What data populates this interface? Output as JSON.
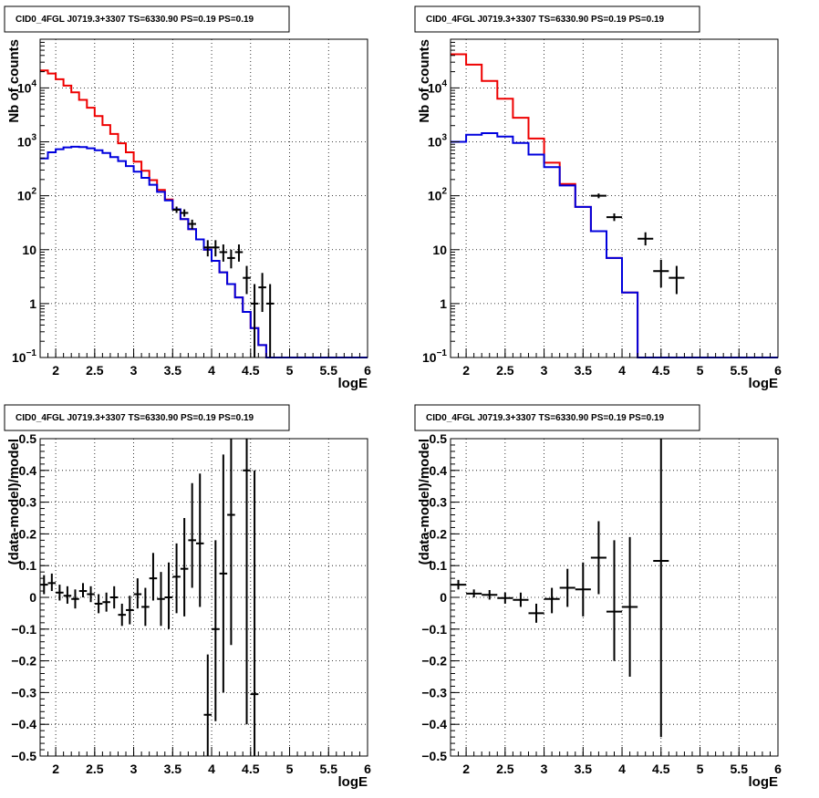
{
  "panel_title": "CID0_4FGL J0719.3+3307 TS=6330.90 PS=0.19 PS=0.19",
  "colors": {
    "model_total": "#ee0000",
    "model_source": "#0000dd",
    "data": "#000000",
    "grid": "#000000"
  },
  "chart_data": [
    {
      "id": "counts-fine",
      "type": "line",
      "title": "CID0_4FGL J0719.3+3307 TS=6330.90 PS=0.19 PS=0.19",
      "xlabel": "logE",
      "ylabel": "Nb of counts",
      "xlim": [
        1.8,
        6.0
      ],
      "ylim": [
        0.1,
        80000
      ],
      "yscale": "log",
      "grid": true,
      "xticks": [
        "2",
        "2.5",
        "3",
        "3.5",
        "4",
        "4.5",
        "5",
        "5.5",
        "6"
      ],
      "yticks": [
        {
          "v": 0.1,
          "base": "10",
          "exp": "−1"
        },
        {
          "v": 1,
          "text": "1"
        },
        {
          "v": 10,
          "text": "10"
        },
        {
          "v": 100,
          "base": "10",
          "exp": "2"
        },
        {
          "v": 1000,
          "base": "10",
          "exp": "3"
        },
        {
          "v": 10000,
          "base": "10",
          "exp": "4"
        }
      ],
      "bin_width": 0.1,
      "series": [
        {
          "name": "",
          "kind": "hist",
          "color": "#ee0000",
          "x0": 1.8,
          "values": [
            21000,
            18500,
            14500,
            11000,
            8300,
            6000,
            4300,
            3000,
            2050,
            1400,
            940,
            640,
            430,
            290,
            195,
            128,
            85,
            56,
            37,
            24,
            15.5,
            10,
            6.2,
            3.8,
            2.3,
            1.3,
            0.7,
            0.35,
            0.17,
            0.1,
            0.1,
            0.1,
            0.1,
            0.1,
            0.1,
            0.1,
            0.1,
            0.1,
            0.1,
            0.1,
            0.1,
            0.1
          ]
        },
        {
          "name": "",
          "kind": "hist",
          "color": "#0000dd",
          "x0": 1.8,
          "values": [
            490,
            640,
            730,
            790,
            810,
            800,
            760,
            700,
            620,
            520,
            440,
            355,
            280,
            215,
            160,
            118,
            82,
            56,
            37,
            24,
            15.5,
            10,
            6.2,
            3.8,
            2.3,
            1.3,
            0.7,
            0.35,
            0.17,
            0.1,
            0.1,
            0.1,
            0.1,
            0.1,
            0.1,
            0.1,
            0.1,
            0.1,
            0.1,
            0.1,
            0.1,
            0.1
          ]
        },
        {
          "name": "",
          "kind": "points",
          "color": "#000000",
          "points": [
            {
              "x": 3.55,
              "y": 55,
              "lo": 48,
              "hi": 63
            },
            {
              "x": 3.65,
              "y": 48,
              "lo": 41,
              "hi": 56
            },
            {
              "x": 3.75,
              "y": 30,
              "lo": 24,
              "hi": 36
            },
            {
              "x": 3.95,
              "y": 11,
              "lo": 7.5,
              "hi": 15
            },
            {
              "x": 4.05,
              "y": 11,
              "lo": 7.5,
              "hi": 15
            },
            {
              "x": 4.15,
              "y": 9,
              "lo": 6,
              "hi": 12.5
            },
            {
              "x": 4.25,
              "y": 7,
              "lo": 4.5,
              "hi": 10
            },
            {
              "x": 4.35,
              "y": 9,
              "lo": 6,
              "hi": 12.5
            },
            {
              "x": 4.45,
              "y": 3,
              "lo": 1.5,
              "hi": 5
            },
            {
              "x": 4.55,
              "y": 1,
              "lo": 0.1,
              "hi": 2.3
            },
            {
              "x": 4.65,
              "y": 2,
              "lo": 0.7,
              "hi": 3.7
            },
            {
              "x": 4.75,
              "y": 1,
              "lo": 0.1,
              "hi": 2.3
            }
          ]
        }
      ]
    },
    {
      "id": "counts-coarse",
      "type": "line",
      "title": "CID0_4FGL J0719.3+3307 TS=6330.90 PS=0.19 PS=0.19",
      "xlabel": "logE",
      "ylabel": "Nb of counts",
      "xlim": [
        1.8,
        6.0
      ],
      "ylim": [
        0.1,
        80000
      ],
      "yscale": "log",
      "grid": true,
      "xticks": [
        "2",
        "2.5",
        "3",
        "3.5",
        "4",
        "4.5",
        "5",
        "5.5",
        "6"
      ],
      "yticks": [
        {
          "v": 0.1,
          "base": "10",
          "exp": "−1"
        },
        {
          "v": 1,
          "text": "1"
        },
        {
          "v": 10,
          "text": "10"
        },
        {
          "v": 100,
          "base": "10",
          "exp": "2"
        },
        {
          "v": 1000,
          "base": "10",
          "exp": "3"
        },
        {
          "v": 10000,
          "base": "10",
          "exp": "4"
        }
      ],
      "bin_width": 0.2,
      "series": [
        {
          "name": "",
          "kind": "hist",
          "color": "#ee0000",
          "x0": 1.8,
          "values": [
            42000,
            27000,
            13500,
            6300,
            2800,
            1150,
            410,
            165,
            62,
            22,
            7,
            1.6,
            0.1,
            0.1,
            0.1,
            0.1,
            0.1,
            0.1,
            0.1,
            0.1,
            0.1
          ]
        },
        {
          "name": "",
          "kind": "hist",
          "color": "#0000dd",
          "x0": 1.8,
          "values": [
            1000,
            1350,
            1450,
            1250,
            950,
            580,
            340,
            155,
            62,
            22,
            7,
            1.6,
            0.1,
            0.1,
            0.1,
            0.1,
            0.1,
            0.1,
            0.1,
            0.1,
            0.1
          ]
        },
        {
          "name": "",
          "kind": "points",
          "color": "#000000",
          "points": [
            {
              "x": 3.7,
              "y": 100,
              "lo": 90,
              "hi": 110
            },
            {
              "x": 3.9,
              "y": 40,
              "lo": 34,
              "hi": 47
            },
            {
              "x": 4.3,
              "y": 16,
              "lo": 12,
              "hi": 21
            },
            {
              "x": 4.5,
              "y": 4,
              "lo": 2,
              "hi": 6.5
            },
            {
              "x": 4.7,
              "y": 3,
              "lo": 1.5,
              "hi": 5
            }
          ]
        }
      ]
    },
    {
      "id": "residuals-fine",
      "type": "scatter",
      "title": "CID0_4FGL J0719.3+3307 TS=6330.90 PS=0.19 PS=0.19",
      "xlabel": "logE",
      "ylabel": "(data-model)/model",
      "xlim": [
        1.8,
        6.0
      ],
      "ylim": [
        -0.5,
        0.5
      ],
      "yscale": "linear",
      "grid": true,
      "xticks": [
        "2",
        "2.5",
        "3",
        "3.5",
        "4",
        "4.5",
        "5",
        "5.5",
        "6"
      ],
      "yticks": [
        {
          "v": -0.5,
          "text": "−0.5"
        },
        {
          "v": -0.4,
          "text": "−0.4"
        },
        {
          "v": -0.3,
          "text": "−0.3"
        },
        {
          "v": -0.2,
          "text": "−0.2"
        },
        {
          "v": -0.1,
          "text": "−0.1"
        },
        {
          "v": 0,
          "text": "0"
        },
        {
          "v": 0.1,
          "text": "0.1"
        },
        {
          "v": 0.2,
          "text": "0.2"
        },
        {
          "v": 0.3,
          "text": "0.3"
        },
        {
          "v": 0.4,
          "text": "0.4"
        },
        {
          "v": 0.5,
          "text": "0.5"
        }
      ],
      "bin_width": 0.1,
      "series": [
        {
          "name": "",
          "kind": "points",
          "color": "#000000",
          "points": [
            {
              "x": 1.85,
              "y": 0.04,
              "lo": 0.01,
              "hi": 0.07
            },
            {
              "x": 1.95,
              "y": 0.045,
              "lo": 0.02,
              "hi": 0.075
            },
            {
              "x": 2.05,
              "y": 0.015,
              "lo": -0.01,
              "hi": 0.04
            },
            {
              "x": 2.15,
              "y": 0.005,
              "lo": -0.02,
              "hi": 0.035
            },
            {
              "x": 2.25,
              "y": -0.005,
              "lo": -0.035,
              "hi": 0.025
            },
            {
              "x": 2.35,
              "y": 0.02,
              "lo": 0,
              "hi": 0.045
            },
            {
              "x": 2.45,
              "y": 0.01,
              "lo": -0.015,
              "hi": 0.035
            },
            {
              "x": 2.55,
              "y": -0.02,
              "lo": -0.05,
              "hi": 0.01
            },
            {
              "x": 2.65,
              "y": -0.015,
              "lo": -0.045,
              "hi": 0.015
            },
            {
              "x": 2.75,
              "y": 0.0,
              "lo": -0.035,
              "hi": 0.035
            },
            {
              "x": 2.85,
              "y": -0.055,
              "lo": -0.09,
              "hi": -0.02
            },
            {
              "x": 2.95,
              "y": -0.04,
              "lo": -0.085,
              "hi": 0.005
            },
            {
              "x": 3.05,
              "y": 0.01,
              "lo": -0.035,
              "hi": 0.06
            },
            {
              "x": 3.15,
              "y": -0.03,
              "lo": -0.09,
              "hi": 0.03
            },
            {
              "x": 3.25,
              "y": 0.06,
              "lo": -0.01,
              "hi": 0.14
            },
            {
              "x": 3.35,
              "y": -0.005,
              "lo": -0.09,
              "hi": 0.08
            },
            {
              "x": 3.45,
              "y": 0.0,
              "lo": -0.1,
              "hi": 0.11
            },
            {
              "x": 3.55,
              "y": 0.065,
              "lo": -0.05,
              "hi": 0.17
            },
            {
              "x": 3.65,
              "y": 0.09,
              "lo": -0.06,
              "hi": 0.25
            },
            {
              "x": 3.75,
              "y": 0.18,
              "lo": 0.03,
              "hi": 0.36
            },
            {
              "x": 3.85,
              "y": 0.17,
              "lo": -0.03,
              "hi": 0.39
            },
            {
              "x": 3.95,
              "y": -0.37,
              "lo": -0.5,
              "hi": -0.18
            },
            {
              "x": 4.05,
              "y": -0.1,
              "lo": -0.39,
              "hi": 0.18
            },
            {
              "x": 4.15,
              "y": 0.075,
              "lo": -0.3,
              "hi": 0.45
            },
            {
              "x": 4.25,
              "y": 0.26,
              "lo": -0.15,
              "hi": 0.5
            },
            {
              "x": 4.45,
              "y": 0.4,
              "lo": -0.4,
              "hi": 0.5
            },
            {
              "x": 4.55,
              "y": -0.305,
              "lo": -0.5,
              "hi": 0.4
            }
          ]
        }
      ]
    },
    {
      "id": "residuals-coarse",
      "type": "scatter",
      "title": "CID0_4FGL J0719.3+3307 TS=6330.90 PS=0.19 PS=0.19",
      "xlabel": "logE",
      "ylabel": "(data-model)/model",
      "xlim": [
        1.8,
        6.0
      ],
      "ylim": [
        -0.5,
        0.5
      ],
      "yscale": "linear",
      "grid": true,
      "xticks": [
        "2",
        "2.5",
        "3",
        "3.5",
        "4",
        "4.5",
        "5",
        "5.5",
        "6"
      ],
      "yticks": [
        {
          "v": -0.5,
          "text": "−0.5"
        },
        {
          "v": -0.4,
          "text": "−0.4"
        },
        {
          "v": -0.3,
          "text": "−0.3"
        },
        {
          "v": -0.2,
          "text": "−0.2"
        },
        {
          "v": -0.1,
          "text": "−0.1"
        },
        {
          "v": 0,
          "text": "0"
        },
        {
          "v": 0.1,
          "text": "0.1"
        },
        {
          "v": 0.2,
          "text": "0.2"
        },
        {
          "v": 0.3,
          "text": "0.3"
        },
        {
          "v": 0.4,
          "text": "0.4"
        },
        {
          "v": 0.5,
          "text": "0.5"
        }
      ],
      "bin_width": 0.2,
      "series": [
        {
          "name": "",
          "kind": "points",
          "color": "#000000",
          "points": [
            {
              "x": 1.9,
              "y": 0.04,
              "lo": 0.025,
              "hi": 0.055
            },
            {
              "x": 2.1,
              "y": 0.012,
              "lo": 0.0,
              "hi": 0.025
            },
            {
              "x": 2.3,
              "y": 0.008,
              "lo": -0.007,
              "hi": 0.023
            },
            {
              "x": 2.5,
              "y": -0.002,
              "lo": -0.02,
              "hi": 0.015
            },
            {
              "x": 2.7,
              "y": -0.008,
              "lo": -0.03,
              "hi": 0.015
            },
            {
              "x": 2.9,
              "y": -0.05,
              "lo": -0.08,
              "hi": -0.02
            },
            {
              "x": 3.1,
              "y": -0.005,
              "lo": -0.05,
              "hi": 0.03
            },
            {
              "x": 3.3,
              "y": 0.03,
              "lo": -0.03,
              "hi": 0.09
            },
            {
              "x": 3.5,
              "y": 0.025,
              "lo": -0.06,
              "hi": 0.11
            },
            {
              "x": 3.7,
              "y": 0.125,
              "lo": 0.01,
              "hi": 0.24
            },
            {
              "x": 3.9,
              "y": -0.045,
              "lo": -0.2,
              "hi": 0.18
            },
            {
              "x": 4.1,
              "y": -0.03,
              "lo": -0.25,
              "hi": 0.19
            },
            {
              "x": 4.5,
              "y": 0.115,
              "lo": -0.44,
              "hi": 0.5
            }
          ]
        }
      ]
    }
  ]
}
